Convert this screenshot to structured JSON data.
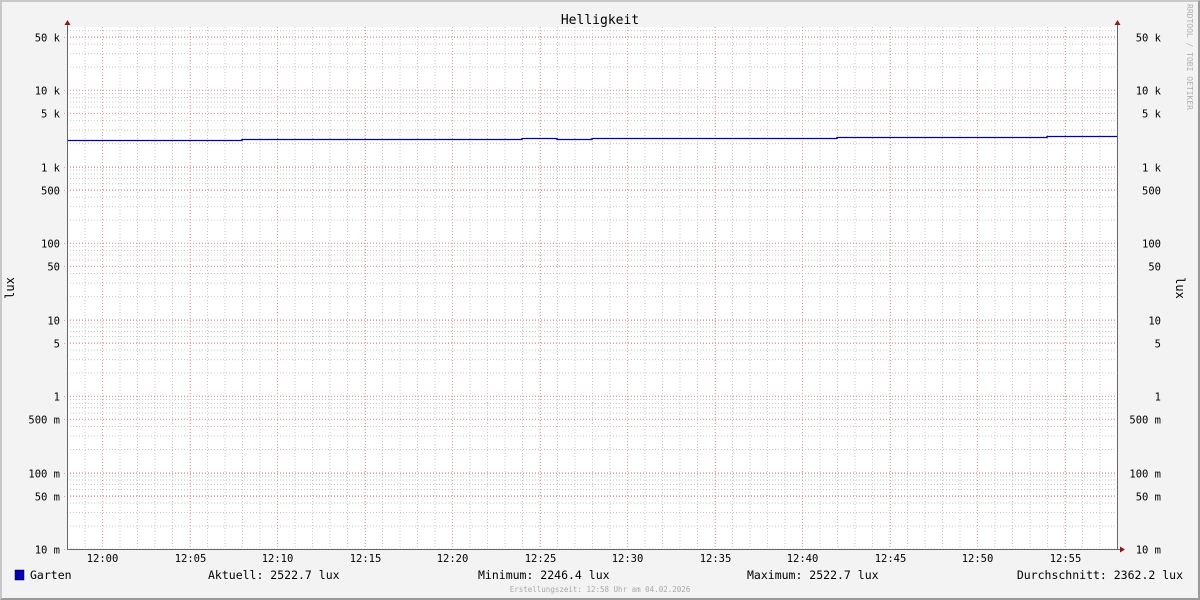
{
  "chart_data": {
    "type": "line",
    "title": "Helligkeit",
    "ylabel": "lux",
    "ylabel_right": "lux",
    "yscale": "log",
    "ylim": [
      0.01,
      67000
    ],
    "xlim": [
      "11:58",
      "12:58"
    ],
    "grid": true,
    "y_ticks": [
      {
        "value": 50000,
        "label": "50 k"
      },
      {
        "value": 10000,
        "label": "10 k"
      },
      {
        "value": 5000,
        "label": "5 k"
      },
      {
        "value": 1000,
        "label": "1 k"
      },
      {
        "value": 500,
        "label": "500"
      },
      {
        "value": 100,
        "label": "100"
      },
      {
        "value": 50,
        "label": "50"
      },
      {
        "value": 10,
        "label": "10"
      },
      {
        "value": 5,
        "label": "5"
      },
      {
        "value": 1,
        "label": "1"
      },
      {
        "value": 0.5,
        "label": "500 m"
      },
      {
        "value": 0.1,
        "label": "100 m"
      },
      {
        "value": 0.05,
        "label": "50 m"
      },
      {
        "value": 0.01,
        "label": "10 m"
      }
    ],
    "x_ticks": [
      "12:00",
      "12:05",
      "12:10",
      "12:15",
      "12:20",
      "12:25",
      "12:30",
      "12:35",
      "12:40",
      "12:45",
      "12:50",
      "12:55"
    ],
    "series": [
      {
        "name": "Garten",
        "color": "#0000b4",
        "x": [
          "11:58",
          "12:08",
          "12:24",
          "12:26",
          "12:28",
          "12:42",
          "12:54",
          "12:58"
        ],
        "values": [
          2246.4,
          2310,
          2400,
          2330,
          2380,
          2440,
          2522.7,
          2522.7
        ]
      }
    ],
    "legend": {
      "placement": "bottom",
      "name": "Garten",
      "current": "Aktuell: 2522.7 lux",
      "minimum": "Minimum: 2246.4 lux",
      "maximum": "Maximum: 2522.7 lux",
      "average": "Durchschnitt: 2362.2 lux"
    },
    "footer": "Erstellungszeit: 12:58 Uhr am 04.02.2026",
    "watermark": "RRDTOOL / TOBI OETIKER",
    "colors": {
      "major_grid": "#e0a0a0",
      "minor_grid": "#c8c8c8",
      "axis": "#666666",
      "arrow": "#8b1a1a"
    }
  }
}
